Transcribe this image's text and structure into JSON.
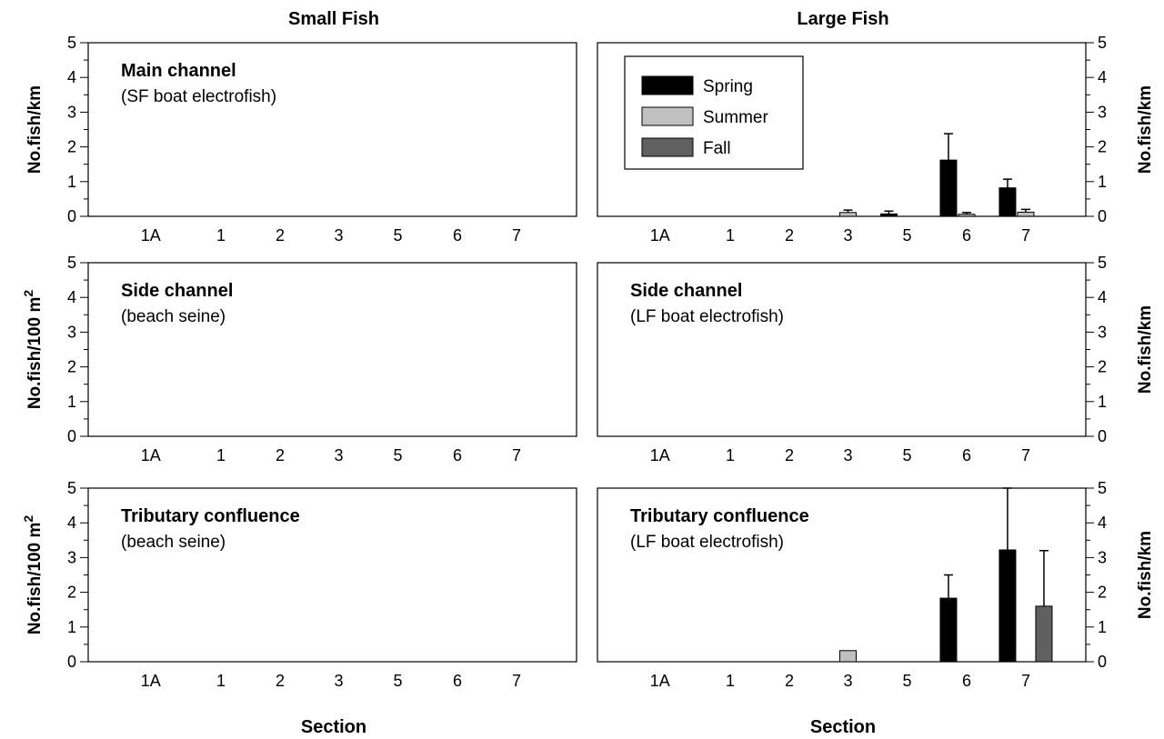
{
  "figure": {
    "column_titles": [
      "Small Fish",
      "Large Fish"
    ],
    "x_title": "Section",
    "y_labels": {
      "per_km": "No.fish/km",
      "per_100m2_prefix": "No.fish/100 m",
      "per_100m2_sup": "2"
    },
    "legend": [
      "Spring",
      "Summer",
      "Fall"
    ]
  },
  "chart_data": [
    {
      "type": "bar",
      "panel": "small-main",
      "title": "Main channel",
      "subtitle": "(SF boat electrofish)",
      "xlabel": "",
      "ylabel": "No.fish/km",
      "ylim": [
        0,
        5
      ],
      "grid": false,
      "categories": [
        "1A",
        "1",
        "2",
        "3",
        "5",
        "6",
        "7"
      ],
      "series": [
        {
          "name": "Spring",
          "color": "#000000",
          "values": [
            0,
            0,
            0,
            0,
            0,
            0,
            0
          ],
          "errors": [
            0,
            0,
            0,
            0,
            0,
            0,
            0
          ]
        },
        {
          "name": "Summer",
          "color": "#c0c0c0",
          "values": [
            0,
            0,
            0,
            0,
            0,
            0,
            0
          ],
          "errors": [
            0,
            0,
            0,
            0,
            0,
            0,
            0
          ]
        },
        {
          "name": "Fall",
          "color": "#606060",
          "values": [
            0,
            0,
            0,
            0,
            0,
            0,
            0
          ],
          "errors": [
            0,
            0,
            0,
            0,
            0,
            0,
            0
          ]
        }
      ]
    },
    {
      "type": "bar",
      "panel": "large-main",
      "title": "Main channel",
      "subtitle": "(LF boat electrofish)",
      "xlabel": "",
      "ylabel": "No.fish/km",
      "ylim": [
        0,
        5
      ],
      "grid": false,
      "legend_position": "top-left",
      "categories": [
        "1A",
        "1",
        "2",
        "3",
        "5",
        "6",
        "7"
      ],
      "series": [
        {
          "name": "Spring",
          "color": "#000000",
          "values": [
            0,
            0,
            0,
            0,
            0.07,
            1.62,
            0.82
          ],
          "errors": [
            0,
            0,
            0,
            0,
            0.08,
            0.76,
            0.25
          ]
        },
        {
          "name": "Summer",
          "color": "#c0c0c0",
          "values": [
            0,
            0,
            0,
            0.11,
            0,
            0.06,
            0.12
          ],
          "errors": [
            0,
            0,
            0,
            0.07,
            0,
            0.05,
            0.08
          ]
        },
        {
          "name": "Fall",
          "color": "#606060",
          "values": [
            0,
            0,
            0,
            0,
            0,
            0,
            0
          ],
          "errors": [
            0,
            0,
            0,
            0,
            0,
            0,
            0
          ]
        }
      ]
    },
    {
      "type": "bar",
      "panel": "small-side",
      "title": "Side channel",
      "subtitle": "(beach seine)",
      "xlabel": "",
      "ylabel": "No.fish/100 m2",
      "ylim": [
        0,
        5
      ],
      "grid": false,
      "categories": [
        "1A",
        "1",
        "2",
        "3",
        "5",
        "6",
        "7"
      ],
      "series": [
        {
          "name": "Spring",
          "color": "#000000",
          "values": [
            0,
            0,
            0,
            0,
            0,
            0,
            0
          ],
          "errors": [
            0,
            0,
            0,
            0,
            0,
            0,
            0
          ]
        },
        {
          "name": "Summer",
          "color": "#c0c0c0",
          "values": [
            0,
            0,
            0,
            0,
            0,
            0,
            0
          ],
          "errors": [
            0,
            0,
            0,
            0,
            0,
            0,
            0
          ]
        },
        {
          "name": "Fall",
          "color": "#606060",
          "values": [
            0,
            0,
            0,
            0,
            0,
            0,
            0
          ],
          "errors": [
            0,
            0,
            0,
            0,
            0,
            0,
            0
          ]
        }
      ]
    },
    {
      "type": "bar",
      "panel": "large-side",
      "title": "Side channel",
      "subtitle": "(LF boat electrofish)",
      "xlabel": "",
      "ylabel": "No.fish/km",
      "ylim": [
        0,
        5
      ],
      "grid": false,
      "categories": [
        "1A",
        "1",
        "2",
        "3",
        "5",
        "6",
        "7"
      ],
      "series": [
        {
          "name": "Spring",
          "color": "#000000",
          "values": [
            0,
            0,
            0,
            0,
            0,
            0,
            0
          ],
          "errors": [
            0,
            0,
            0,
            0,
            0,
            0,
            0
          ]
        },
        {
          "name": "Summer",
          "color": "#c0c0c0",
          "values": [
            0,
            0,
            0,
            0,
            0,
            0,
            0
          ],
          "errors": [
            0,
            0,
            0,
            0,
            0,
            0,
            0
          ]
        },
        {
          "name": "Fall",
          "color": "#606060",
          "values": [
            0,
            0,
            0,
            0,
            0,
            0,
            0
          ],
          "errors": [
            0,
            0,
            0,
            0,
            0,
            0,
            0
          ]
        }
      ]
    },
    {
      "type": "bar",
      "panel": "small-trib",
      "title": "Tributary confluence",
      "subtitle": "(beach seine)",
      "xlabel": "Section",
      "ylabel": "No.fish/100 m2",
      "ylim": [
        0,
        5
      ],
      "grid": false,
      "categories": [
        "1A",
        "1",
        "2",
        "3",
        "5",
        "6",
        "7"
      ],
      "series": [
        {
          "name": "Spring",
          "color": "#000000",
          "values": [
            0,
            0,
            0,
            0,
            0,
            0,
            0
          ],
          "errors": [
            0,
            0,
            0,
            0,
            0,
            0,
            0
          ]
        },
        {
          "name": "Summer",
          "color": "#c0c0c0",
          "values": [
            0,
            0,
            0,
            0,
            0,
            0,
            0
          ],
          "errors": [
            0,
            0,
            0,
            0,
            0,
            0,
            0
          ]
        },
        {
          "name": "Fall",
          "color": "#606060",
          "values": [
            0,
            0,
            0,
            0,
            0,
            0,
            0
          ],
          "errors": [
            0,
            0,
            0,
            0,
            0,
            0,
            0
          ]
        }
      ]
    },
    {
      "type": "bar",
      "panel": "large-trib",
      "title": "Tributary confluence",
      "subtitle": "(LF boat electrofish)",
      "xlabel": "Section",
      "ylabel": "No.fish/km",
      "ylim": [
        0,
        5
      ],
      "grid": false,
      "categories": [
        "1A",
        "1",
        "2",
        "3",
        "5",
        "6",
        "7"
      ],
      "series": [
        {
          "name": "Spring",
          "color": "#000000",
          "values": [
            0,
            0,
            0,
            0,
            0,
            1.83,
            3.22
          ],
          "errors": [
            0,
            0,
            0,
            0,
            0,
            0.67,
            1.78
          ]
        },
        {
          "name": "Summer",
          "color": "#c0c0c0",
          "values": [
            0,
            0,
            0,
            0.32,
            0,
            0,
            0
          ],
          "errors": [
            0,
            0,
            0,
            0,
            0,
            0,
            0
          ]
        },
        {
          "name": "Fall",
          "color": "#606060",
          "values": [
            0,
            0,
            0,
            0,
            0,
            0,
            1.6
          ],
          "errors": [
            0,
            0,
            0,
            0,
            0,
            0,
            1.6
          ]
        }
      ]
    }
  ]
}
